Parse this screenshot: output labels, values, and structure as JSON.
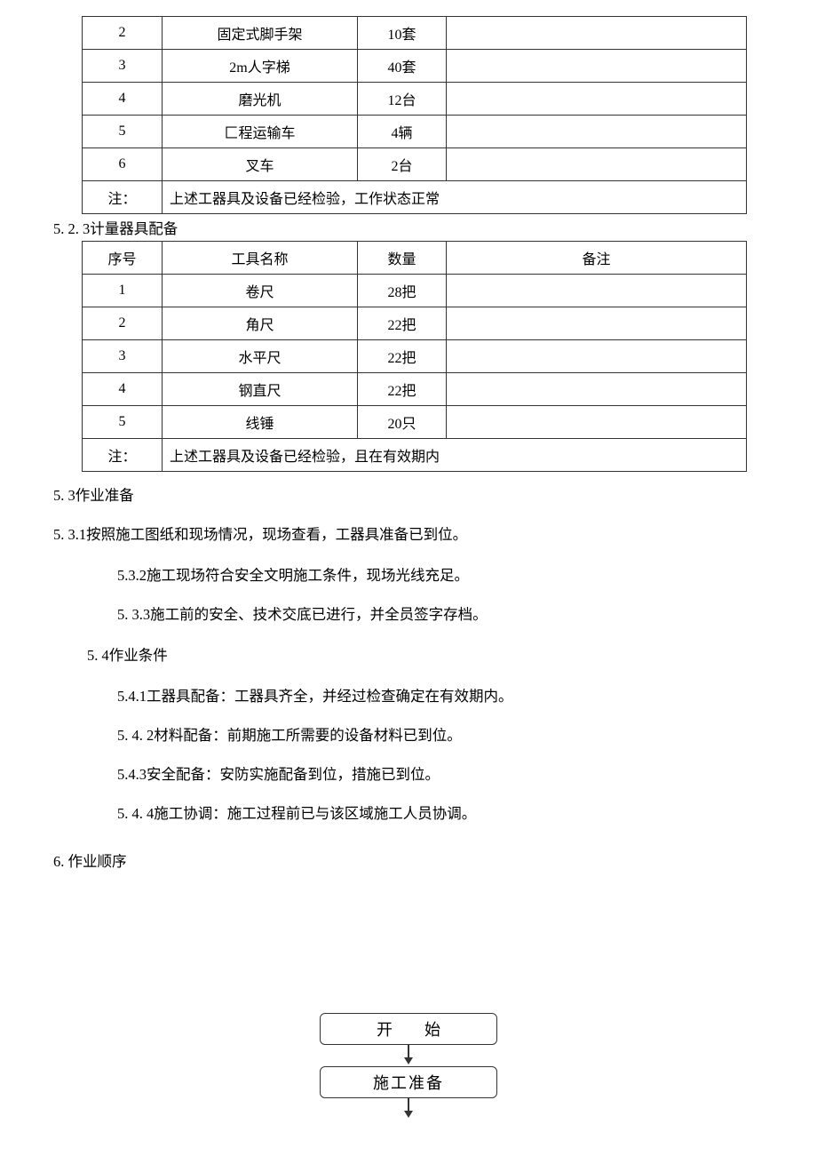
{
  "table1": {
    "rows": [
      {
        "num": "2",
        "name": "固定式脚手架",
        "qty": "10套",
        "note": ""
      },
      {
        "num": "3",
        "name": "2m人字梯",
        "qty": "40套",
        "note": ""
      },
      {
        "num": "4",
        "name": "磨光机",
        "qty": "12台",
        "note": ""
      },
      {
        "num": "5",
        "name": "匚程运输车",
        "qty": "4辆",
        "note": ""
      },
      {
        "num": "6",
        "name": "叉车",
        "qty": "2台",
        "note": ""
      }
    ],
    "footer_label": "注：",
    "footer_text": "上述工器具及设备已经检验，工作状态正常"
  },
  "heading_5_2_3": "5. 2. 3计量器具配备",
  "table2": {
    "header": {
      "num": "序号",
      "name": "工具名称",
      "qty": "数量",
      "note": "备注"
    },
    "rows": [
      {
        "num": "1",
        "name": "卷尺",
        "qty": "28把",
        "note": ""
      },
      {
        "num": "2",
        "name": "角尺",
        "qty": "22把",
        "note": ""
      },
      {
        "num": "3",
        "name": "水平尺",
        "qty": "22把",
        "note": ""
      },
      {
        "num": "4",
        "name": "钢直尺",
        "qty": "22把",
        "note": ""
      },
      {
        "num": "5",
        "name": "线锤",
        "qty": "20只",
        "note": ""
      }
    ],
    "footer_label": "注：",
    "footer_text": "上述工器具及设备已经检验，且在有效期内"
  },
  "text": {
    "h_5_3": "5. 3作业准备",
    "p_5_3_1": "5. 3.1按照施工图纸和现场情况，现场查看，工器具准备已到位。",
    "p_5_3_2": "5.3.2施工现场符合安全文明施工条件，现场光线充足。",
    "p_5_3_3": "5. 3.3施工前的安全、技术交底已进行，并全员签字存档。",
    "h_5_4": "5. 4作业条件",
    "p_5_4_1": "5.4.1工器具配备：工器具齐全，并经过检查确定在有效期内。",
    "p_5_4_2": "5. 4. 2材料配备：前期施工所需要的设备材料已到位。",
    "p_5_4_3": "5.4.3安全配备：安防实施配备到位，措施已到位。",
    "p_5_4_4": "5. 4. 4施工协调：施工过程前已与该区域施工人员协调。",
    "h_6": "6.   作业顺序"
  },
  "flowchart": {
    "node1": "开始",
    "node2": "施工准备"
  }
}
